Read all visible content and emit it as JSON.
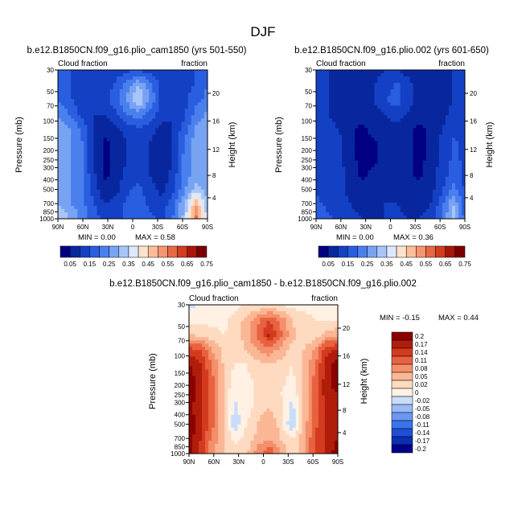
{
  "figure": {
    "title": "DJF",
    "colors": {
      "diverging": [
        "#00008b",
        "#0a2fb0",
        "#1f4fd8",
        "#3b73ec",
        "#6a98f2",
        "#9ab9f6",
        "#c9dcfb",
        "#fff1e4",
        "#fddac0",
        "#fbb795",
        "#f48f6b",
        "#e8623f",
        "#d33b1f",
        "#b11d0b",
        "#8b0000"
      ],
      "abs_scale": [
        "#000080",
        "#08279e",
        "#1440c4",
        "#2a5ee0",
        "#4a80ee",
        "#78a3f3",
        "#a8c5f8",
        "#dce8fc",
        "#fde3cf",
        "#fbbd9a",
        "#f59571",
        "#e86845",
        "#d13e20",
        "#a8160b",
        "#7a0000"
      ]
    }
  },
  "chart_data": [
    {
      "type": "heatmap",
      "title": "b.e12.B1850CN.f09_g16.plio_cam1850 (yrs 501-550)",
      "left_label": "Cloud fraction",
      "right_label": "fraction",
      "ylabel": "Pressure (mb)",
      "ylabel_right": "Height (km)",
      "xticks": [
        "90N",
        "60N",
        "30N",
        "0",
        "30S",
        "60S",
        "90S"
      ],
      "yticks": [
        "30",
        "50",
        "70",
        "100",
        "150",
        "200",
        "250",
        "300",
        "400",
        "500",
        "700",
        "850",
        "1000"
      ],
      "yticks_right": [
        "20",
        "16",
        "12",
        "8",
        "4"
      ],
      "min_text": "MIN =    0.00",
      "max_text": "MAX =    0.58",
      "colorbar": {
        "labels": [
          "0.05",
          "0.15",
          "0.25",
          "0.35",
          "0.45",
          "0.55",
          "0.65",
          "0.75"
        ]
      },
      "field": [
        [
          0.18,
          0.16,
          0.12,
          0.1,
          0.1,
          0.12,
          0.14,
          0.14,
          0.12,
          0.1,
          0.1,
          0.12,
          0.16,
          0.2
        ],
        [
          0.18,
          0.15,
          0.12,
          0.1,
          0.12,
          0.16,
          0.22,
          0.3,
          0.22,
          0.14,
          0.12,
          0.12,
          0.16,
          0.2
        ],
        [
          0.2,
          0.16,
          0.12,
          0.1,
          0.12,
          0.18,
          0.26,
          0.36,
          0.24,
          0.14,
          0.12,
          0.14,
          0.18,
          0.22
        ],
        [
          0.24,
          0.2,
          0.14,
          0.1,
          0.1,
          0.14,
          0.2,
          0.22,
          0.18,
          0.12,
          0.1,
          0.14,
          0.22,
          0.26
        ],
        [
          0.3,
          0.26,
          0.2,
          0.1,
          0.06,
          0.08,
          0.12,
          0.14,
          0.12,
          0.08,
          0.1,
          0.18,
          0.26,
          0.3
        ],
        [
          0.3,
          0.26,
          0.22,
          0.1,
          0.04,
          0.06,
          0.1,
          0.12,
          0.1,
          0.06,
          0.1,
          0.2,
          0.28,
          0.3
        ],
        [
          0.28,
          0.26,
          0.22,
          0.1,
          0.04,
          0.06,
          0.1,
          0.12,
          0.1,
          0.06,
          0.1,
          0.22,
          0.28,
          0.28
        ],
        [
          0.26,
          0.26,
          0.22,
          0.12,
          0.04,
          0.06,
          0.12,
          0.14,
          0.1,
          0.06,
          0.12,
          0.22,
          0.28,
          0.26
        ],
        [
          0.28,
          0.26,
          0.22,
          0.14,
          0.06,
          0.08,
          0.14,
          0.16,
          0.12,
          0.08,
          0.14,
          0.24,
          0.32,
          0.26
        ],
        [
          0.3,
          0.26,
          0.22,
          0.16,
          0.1,
          0.12,
          0.16,
          0.18,
          0.14,
          0.12,
          0.18,
          0.3,
          0.5,
          0.3
        ],
        [
          0.36,
          0.3,
          0.24,
          0.18,
          0.14,
          0.14,
          0.16,
          0.18,
          0.16,
          0.14,
          0.2,
          0.32,
          0.56,
          0.34
        ]
      ]
    },
    {
      "type": "heatmap",
      "title": "b.e12.B1850CN.f09_g16.plio.002 (yrs 601-650)",
      "left_label": "Cloud fraction",
      "right_label": "fraction",
      "ylabel": "Pressure (mb)",
      "ylabel_right": "Height (km)",
      "xticks": [
        "90N",
        "60N",
        "30N",
        "0",
        "30S",
        "60S",
        "90S"
      ],
      "yticks": [
        "30",
        "50",
        "70",
        "100",
        "150",
        "200",
        "250",
        "300",
        "400",
        "500",
        "700",
        "850",
        "1000"
      ],
      "yticks_right": [
        "20",
        "16",
        "12",
        "8",
        "4"
      ],
      "min_text": "MIN =    0.00",
      "max_text": "MAX =    0.36",
      "colorbar": {
        "labels": [
          "0.05",
          "0.15",
          "0.25",
          "0.35",
          "0.45",
          "0.55",
          "0.65",
          "0.75"
        ]
      },
      "field": [
        [
          0.1,
          0.1,
          0.08,
          0.06,
          0.06,
          0.08,
          0.1,
          0.1,
          0.08,
          0.06,
          0.06,
          0.08,
          0.1,
          0.12
        ],
        [
          0.1,
          0.1,
          0.08,
          0.06,
          0.08,
          0.1,
          0.12,
          0.16,
          0.12,
          0.08,
          0.06,
          0.08,
          0.1,
          0.12
        ],
        [
          0.1,
          0.1,
          0.08,
          0.06,
          0.08,
          0.1,
          0.14,
          0.18,
          0.12,
          0.08,
          0.06,
          0.08,
          0.1,
          0.12
        ],
        [
          0.12,
          0.1,
          0.08,
          0.06,
          0.06,
          0.08,
          0.1,
          0.12,
          0.1,
          0.06,
          0.06,
          0.08,
          0.12,
          0.14
        ],
        [
          0.14,
          0.12,
          0.1,
          0.06,
          0.04,
          0.06,
          0.08,
          0.08,
          0.06,
          0.04,
          0.06,
          0.1,
          0.14,
          0.14
        ],
        [
          0.14,
          0.14,
          0.12,
          0.06,
          0.04,
          0.04,
          0.06,
          0.08,
          0.06,
          0.04,
          0.06,
          0.12,
          0.16,
          0.14
        ],
        [
          0.14,
          0.14,
          0.12,
          0.06,
          0.04,
          0.04,
          0.06,
          0.08,
          0.06,
          0.04,
          0.06,
          0.12,
          0.16,
          0.14
        ],
        [
          0.14,
          0.14,
          0.12,
          0.08,
          0.04,
          0.06,
          0.08,
          0.08,
          0.06,
          0.04,
          0.08,
          0.12,
          0.18,
          0.14
        ],
        [
          0.14,
          0.14,
          0.12,
          0.08,
          0.06,
          0.06,
          0.08,
          0.1,
          0.08,
          0.06,
          0.08,
          0.14,
          0.22,
          0.14
        ],
        [
          0.16,
          0.14,
          0.12,
          0.1,
          0.08,
          0.08,
          0.1,
          0.1,
          0.08,
          0.08,
          0.1,
          0.18,
          0.3,
          0.16
        ],
        [
          0.18,
          0.16,
          0.14,
          0.12,
          0.1,
          0.1,
          0.1,
          0.12,
          0.1,
          0.1,
          0.12,
          0.2,
          0.34,
          0.18
        ]
      ]
    },
    {
      "type": "heatmap",
      "title": "b.e12.B1850CN.f09_g16.plio_cam1850 - b.e12.B1850CN.f09_g16.plio.002",
      "left_label": "Cloud fraction",
      "right_label": "fraction",
      "ylabel": "Pressure (mb)",
      "ylabel_right": "Height (km)",
      "xticks": [
        "90N",
        "60N",
        "30N",
        "0",
        "30S",
        "60S",
        "90S"
      ],
      "yticks": [
        "30",
        "50",
        "70",
        "100",
        "150",
        "200",
        "250",
        "300",
        "400",
        "500",
        "700",
        "850",
        "1000"
      ],
      "yticks_right": [
        "20",
        "16",
        "12",
        "8",
        "4"
      ],
      "min_text": "MIN =  -0.15",
      "max_text": "MAX =    0.44",
      "colorbar": {
        "labels": [
          "0.2",
          "0.17",
          "0.14",
          "0.11",
          "0.08",
          "0.05",
          "0.02",
          "0",
          "-0.02",
          "-0.05",
          "-0.08",
          "-0.11",
          "-0.14",
          "-0.17",
          "-0.2"
        ]
      },
      "field": [
        [
          -0.03,
          -0.02,
          0.0,
          0.01,
          0.01,
          0.02,
          0.02,
          0.02,
          0.02,
          0.01,
          0.01,
          0.01,
          0.0,
          -0.02
        ],
        [
          0.01,
          0.01,
          0.01,
          0.01,
          0.03,
          0.06,
          0.1,
          0.14,
          0.1,
          0.05,
          0.03,
          0.02,
          0.02,
          0.02
        ],
        [
          0.05,
          0.04,
          0.03,
          0.02,
          0.03,
          0.07,
          0.12,
          0.18,
          0.12,
          0.06,
          0.03,
          0.03,
          0.06,
          0.07
        ],
        [
          0.15,
          0.14,
          0.08,
          0.04,
          0.03,
          0.05,
          0.08,
          0.1,
          0.07,
          0.04,
          0.05,
          0.08,
          0.16,
          0.17
        ],
        [
          0.2,
          0.17,
          0.11,
          0.05,
          0.02,
          0.02,
          0.04,
          0.05,
          0.04,
          0.02,
          0.05,
          0.11,
          0.18,
          0.22
        ],
        [
          0.22,
          0.18,
          0.12,
          0.05,
          0.0,
          0.01,
          0.03,
          0.04,
          0.03,
          0.01,
          0.05,
          0.12,
          0.19,
          0.22
        ],
        [
          0.22,
          0.18,
          0.12,
          0.05,
          -0.01,
          0.0,
          0.03,
          0.04,
          0.02,
          0.0,
          0.05,
          0.12,
          0.19,
          0.2
        ],
        [
          0.21,
          0.18,
          0.12,
          0.05,
          -0.03,
          0.0,
          0.04,
          0.05,
          0.03,
          -0.04,
          0.05,
          0.12,
          0.17,
          0.18
        ],
        [
          0.22,
          0.18,
          0.12,
          0.06,
          -0.05,
          0.02,
          0.05,
          0.07,
          0.04,
          -0.06,
          0.06,
          0.13,
          0.17,
          0.18
        ],
        [
          0.22,
          0.17,
          0.1,
          0.06,
          0.01,
          0.03,
          0.06,
          0.08,
          0.05,
          0.02,
          0.07,
          0.14,
          0.18,
          0.2
        ],
        [
          0.22,
          0.16,
          0.09,
          0.05,
          0.03,
          0.04,
          0.1,
          0.14,
          0.08,
          0.03,
          0.07,
          0.14,
          0.18,
          0.22
        ]
      ]
    }
  ]
}
